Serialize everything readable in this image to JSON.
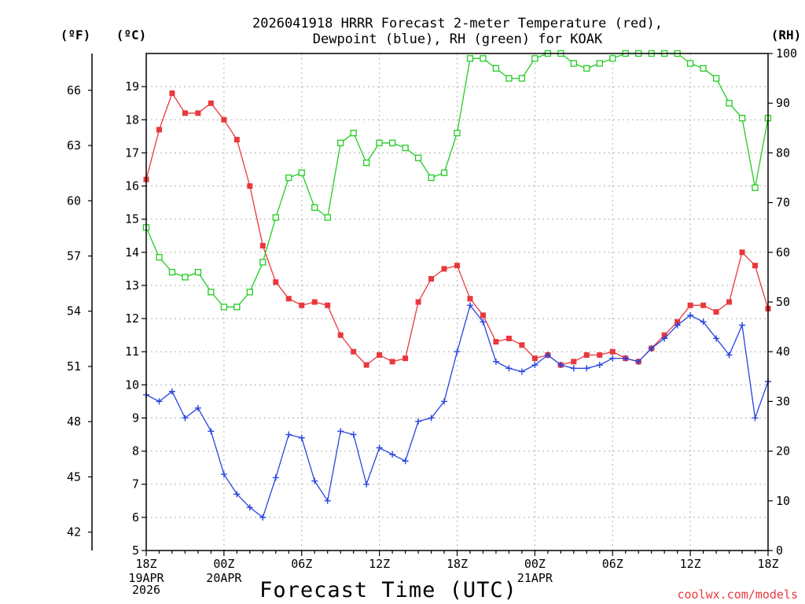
{
  "chart_data": {
    "type": "line",
    "title": "2026041918 HRRR Forecast 2-meter Temperature (red),",
    "subtitle": "Dewpoint (blue), RH (green) for KOAK",
    "xlabel": "Forecast Time (UTC)",
    "credit": "coolwx.com/models",
    "units": {
      "fahrenheit": "(ºF)",
      "celsius": "(ºC)",
      "rh": "(RH)"
    },
    "x": [
      0,
      1,
      2,
      3,
      4,
      5,
      6,
      7,
      8,
      9,
      10,
      11,
      12,
      13,
      14,
      15,
      16,
      17,
      18,
      19,
      20,
      21,
      22,
      23,
      24,
      25,
      26,
      27,
      28,
      29,
      30,
      31,
      32,
      33,
      34,
      35,
      36,
      37,
      38,
      39,
      40,
      41,
      42,
      43,
      44,
      45,
      46,
      47,
      48
    ],
    "xlim": [
      0,
      48
    ],
    "x_ticks": [
      {
        "hour": 0,
        "label": "18Z"
      },
      {
        "hour": 6,
        "label": "00Z"
      },
      {
        "hour": 12,
        "label": "06Z"
      },
      {
        "hour": 18,
        "label": "12Z"
      },
      {
        "hour": 24,
        "label": "18Z"
      },
      {
        "hour": 30,
        "label": "00Z"
      },
      {
        "hour": 36,
        "label": "06Z"
      },
      {
        "hour": 42,
        "label": "12Z"
      },
      {
        "hour": 48,
        "label": "18Z"
      }
    ],
    "date_labels": [
      {
        "hour": 0,
        "lines": [
          "19APR",
          "2026"
        ]
      },
      {
        "hour": 6,
        "lines": [
          "20APR"
        ]
      },
      {
        "hour": 30,
        "lines": [
          "21APR"
        ]
      }
    ],
    "y_celsius": {
      "lim": [
        5,
        20
      ],
      "ticks": [
        5,
        6,
        7,
        8,
        9,
        10,
        11,
        12,
        13,
        14,
        15,
        16,
        17,
        18,
        19
      ]
    },
    "y_fahrenheit": {
      "ticks": [
        42,
        45,
        48,
        51,
        54,
        57,
        60,
        63,
        66
      ]
    },
    "y_rh": {
      "lim": [
        0,
        100
      ],
      "ticks": [
        0,
        10,
        20,
        30,
        40,
        50,
        60,
        70,
        80,
        90,
        100
      ]
    },
    "series": [
      {
        "name": "2-meter Temperature",
        "color": "#e8383d",
        "marker": "filled-square",
        "axis": "celsius",
        "values": [
          16.2,
          17.7,
          18.8,
          18.2,
          18.2,
          18.5,
          18.0,
          17.4,
          16.0,
          14.2,
          13.1,
          12.6,
          12.4,
          12.5,
          12.4,
          11.5,
          11.0,
          10.6,
          10.9,
          10.7,
          10.8,
          12.5,
          13.2,
          13.5,
          13.6,
          12.6,
          12.1,
          11.3,
          11.4,
          11.2,
          10.8,
          10.9,
          10.6,
          10.7,
          10.9,
          10.9,
          11.0,
          10.8,
          10.7,
          11.1,
          11.5,
          11.9,
          12.4,
          12.4,
          12.2,
          12.5,
          14.0,
          13.6,
          12.3
        ]
      },
      {
        "name": "Dewpoint",
        "color": "#2844e0",
        "marker": "plus",
        "axis": "celsius",
        "values": [
          9.7,
          9.5,
          9.8,
          9.0,
          9.3,
          8.6,
          7.3,
          6.7,
          6.3,
          6.0,
          7.2,
          8.5,
          8.4,
          7.1,
          6.5,
          8.6,
          8.5,
          7.0,
          8.1,
          7.9,
          7.7,
          8.9,
          9.0,
          9.5,
          11.0,
          12.4,
          11.9,
          10.7,
          10.5,
          10.4,
          10.6,
          10.9,
          10.6,
          10.5,
          10.5,
          10.6,
          10.8,
          10.8,
          10.7,
          11.1,
          11.4,
          11.8,
          12.1,
          11.9,
          11.4,
          10.9,
          11.8,
          9.0,
          10.1
        ]
      },
      {
        "name": "RH",
        "color": "#22cc22",
        "marker": "open-square",
        "axis": "rh",
        "values": [
          65,
          59,
          56,
          55,
          56,
          52,
          49,
          49,
          52,
          58,
          67,
          75,
          76,
          69,
          67,
          82,
          84,
          78,
          82,
          82,
          81,
          79,
          75,
          76,
          84,
          99,
          99,
          97,
          95,
          95,
          99,
          100,
          100,
          98,
          97,
          98,
          99,
          100,
          100,
          100,
          100,
          100,
          98,
          97,
          95,
          90,
          87,
          73,
          87
        ]
      }
    ]
  }
}
